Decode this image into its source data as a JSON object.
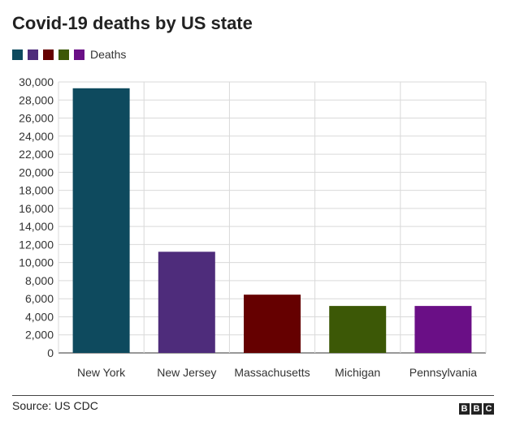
{
  "title": "Covid-19 deaths by US state",
  "legend": {
    "swatches": [
      "#0e4a5e",
      "#4e2c7b",
      "#650000",
      "#3c5806",
      "#6a0f86"
    ],
    "label": "Deaths"
  },
  "source": "Source: US CDC",
  "logo": [
    "B",
    "B",
    "C"
  ],
  "chart_data": {
    "type": "bar",
    "title": "Covid-19 deaths by US state",
    "xlabel": "",
    "ylabel": "",
    "categories": [
      "New York",
      "New Jersey",
      "Massachusetts",
      "Michigan",
      "Pennsylvania"
    ],
    "series": [
      {
        "name": "Deaths",
        "values": [
          29300,
          11200,
          6450,
          5200,
          5200
        ],
        "colors": [
          "#0e4a5e",
          "#4e2c7b",
          "#650000",
          "#3c5806",
          "#6a0f86"
        ]
      }
    ],
    "ylim": [
      0,
      30000
    ],
    "yticks": [
      0,
      2000,
      4000,
      6000,
      8000,
      10000,
      12000,
      14000,
      16000,
      18000,
      20000,
      22000,
      24000,
      26000,
      28000,
      30000
    ],
    "ytick_labels": [
      "0",
      "2,000",
      "4,000",
      "6,000",
      "8,000",
      "10,000",
      "12,000",
      "14,000",
      "16,000",
      "18,000",
      "20,000",
      "22,000",
      "24,000",
      "26,000",
      "28,000",
      "30,000"
    ],
    "grid": true,
    "legend_position": "top-left"
  }
}
